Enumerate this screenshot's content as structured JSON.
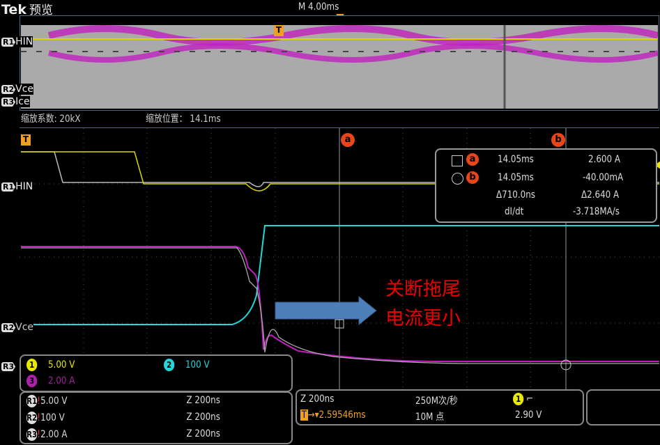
{
  "header": {
    "brand": "Tek",
    "mode": "预览",
    "timebase": "M 4.00ms"
  },
  "overview": {
    "refs": [
      {
        "id": "R1",
        "label": "HIN"
      },
      {
        "id": "R2",
        "label": "Vce"
      },
      {
        "id": "R3",
        "label": "Ice"
      }
    ],
    "trigger_marker": "T"
  },
  "zoom": {
    "factor_label": "缩放系数: 20kX",
    "position_label": "缩放位置：",
    "position_value": "14.1ms"
  },
  "main": {
    "trigger_marker": "T",
    "cursor_a": "a",
    "cursor_b": "b",
    "ref_labels": [
      {
        "id": "R1",
        "label": "HIN"
      },
      {
        "id": "R2",
        "label": "Vce"
      },
      {
        "id": "R3",
        "label": ""
      }
    ]
  },
  "measurement": {
    "rows": [
      {
        "shape": "square",
        "cursor": "a",
        "time": "14.05ms",
        "value": "2.600 A"
      },
      {
        "shape": "circle",
        "cursor": "b",
        "time": "14.05ms",
        "value": "-40.00mA"
      },
      {
        "shape": "",
        "cursor": "",
        "time": "Δ710.0ns",
        "value": "Δ2.640 A"
      },
      {
        "shape": "",
        "cursor": "",
        "time": "dI/dt",
        "value": "-3.718MA/s"
      }
    ]
  },
  "annotation": {
    "line1": "关断拖尾",
    "line2": "电流更小"
  },
  "channels": [
    {
      "num": "1",
      "scale": "5.00 V",
      "color": "#e8e800"
    },
    {
      "num": "2",
      "scale": "100 V",
      "color": "#22d8d8"
    },
    {
      "num": "3",
      "scale": "2.00 A",
      "color": "#b020b0"
    }
  ],
  "refs": [
    {
      "id": "R1",
      "scale": "5.00 V",
      "zoom": "Z 200ns"
    },
    {
      "id": "R2",
      "scale": "100 V",
      "zoom": "Z 200ns"
    },
    {
      "id": "R3",
      "scale": "2.00 A",
      "zoom": "Z 200ns"
    }
  ],
  "horizontal": {
    "zoom": "Z 200ns",
    "sample_rate": "250M次/秒",
    "trigger_pos": "▾2.59546ms",
    "record": "10M 点",
    "trigger_source": "1",
    "trigger_slope": "⌐",
    "trigger_level": "2.90 V"
  },
  "colors": {
    "ch1": "#e8e800",
    "ch2": "#22d8d8",
    "ch3": "#b020b0",
    "ref": "#c8c8c8",
    "cursor": "#e8461a",
    "trigger": "#f0a020"
  }
}
